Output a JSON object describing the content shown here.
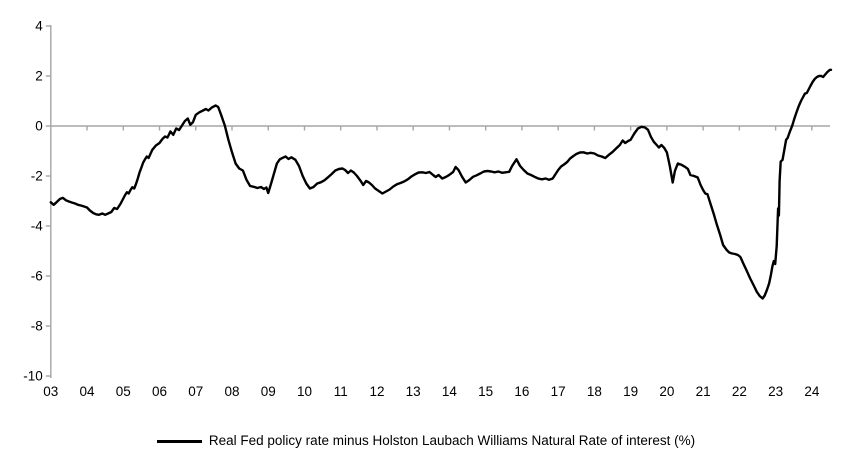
{
  "legend": {
    "label": "Real Fed policy rate minus Holston Laubach Williams Natural Rate of interest (%)"
  },
  "chart_data": {
    "type": "line",
    "title": "",
    "xlabel": "",
    "ylabel": "",
    "grid": false,
    "zero_line": true,
    "legend_position": "bottom",
    "axis_color": "#a6a6a6",
    "text_color": "#000000",
    "xlim": [
      2003,
      2024.6
    ],
    "ylim": [
      -10,
      4
    ],
    "y_ticks": [
      4,
      2,
      0,
      -2,
      -4,
      -6,
      -8,
      -10
    ],
    "y_tick_labels": [
      "4",
      "2",
      "0",
      "-2",
      "-4",
      "-6",
      "-8",
      "-10"
    ],
    "x_tick_years": [
      2003,
      2004,
      2005,
      2006,
      2007,
      2008,
      2009,
      2010,
      2011,
      2012,
      2013,
      2014,
      2015,
      2016,
      2017,
      2018,
      2019,
      2020,
      2021,
      2022,
      2023,
      2024
    ],
    "x_tick_labels": [
      "03",
      "04",
      "05",
      "06",
      "07",
      "08",
      "09",
      "10",
      "11",
      "12",
      "13",
      "14",
      "15",
      "16",
      "17",
      "18",
      "19",
      "20",
      "21",
      "22",
      "23",
      "24"
    ],
    "series": [
      {
        "name": "Real Fed policy rate minus Holston Laubach Williams Natural Rate of interest (%)",
        "color": "#000000",
        "points": [
          [
            2003.0,
            -3.05
          ],
          [
            2003.08,
            -3.15
          ],
          [
            2003.17,
            -3.03
          ],
          [
            2003.25,
            -2.92
          ],
          [
            2003.33,
            -2.87
          ],
          [
            2003.42,
            -2.97
          ],
          [
            2003.5,
            -3.02
          ],
          [
            2003.58,
            -3.06
          ],
          [
            2003.67,
            -3.1
          ],
          [
            2003.75,
            -3.15
          ],
          [
            2003.83,
            -3.18
          ],
          [
            2003.92,
            -3.22
          ],
          [
            2004.0,
            -3.26
          ],
          [
            2004.08,
            -3.38
          ],
          [
            2004.17,
            -3.48
          ],
          [
            2004.25,
            -3.53
          ],
          [
            2004.33,
            -3.55
          ],
          [
            2004.42,
            -3.5
          ],
          [
            2004.5,
            -3.55
          ],
          [
            2004.58,
            -3.5
          ],
          [
            2004.67,
            -3.44
          ],
          [
            2004.75,
            -3.28
          ],
          [
            2004.83,
            -3.32
          ],
          [
            2004.92,
            -3.12
          ],
          [
            2005.0,
            -2.9
          ],
          [
            2005.05,
            -2.76
          ],
          [
            2005.1,
            -2.65
          ],
          [
            2005.15,
            -2.7
          ],
          [
            2005.2,
            -2.56
          ],
          [
            2005.25,
            -2.45
          ],
          [
            2005.3,
            -2.5
          ],
          [
            2005.35,
            -2.32
          ],
          [
            2005.4,
            -2.1
          ],
          [
            2005.45,
            -1.85
          ],
          [
            2005.5,
            -1.66
          ],
          [
            2005.55,
            -1.46
          ],
          [
            2005.6,
            -1.33
          ],
          [
            2005.65,
            -1.22
          ],
          [
            2005.7,
            -1.28
          ],
          [
            2005.8,
            -0.95
          ],
          [
            2005.9,
            -0.78
          ],
          [
            2006.0,
            -0.68
          ],
          [
            2006.08,
            -0.52
          ],
          [
            2006.15,
            -0.42
          ],
          [
            2006.22,
            -0.46
          ],
          [
            2006.3,
            -0.22
          ],
          [
            2006.38,
            -0.35
          ],
          [
            2006.46,
            -0.1
          ],
          [
            2006.54,
            -0.16
          ],
          [
            2006.62,
            0.02
          ],
          [
            2006.7,
            0.2
          ],
          [
            2006.78,
            0.3
          ],
          [
            2006.85,
            0.05
          ],
          [
            2006.92,
            0.15
          ],
          [
            2007.0,
            0.45
          ],
          [
            2007.1,
            0.55
          ],
          [
            2007.2,
            0.62
          ],
          [
            2007.28,
            0.68
          ],
          [
            2007.35,
            0.62
          ],
          [
            2007.45,
            0.75
          ],
          [
            2007.55,
            0.82
          ],
          [
            2007.62,
            0.76
          ],
          [
            2007.7,
            0.45
          ],
          [
            2007.8,
            0.02
          ],
          [
            2007.9,
            -0.55
          ],
          [
            2008.0,
            -1.05
          ],
          [
            2008.1,
            -1.5
          ],
          [
            2008.2,
            -1.7
          ],
          [
            2008.3,
            -1.78
          ],
          [
            2008.4,
            -2.15
          ],
          [
            2008.5,
            -2.4
          ],
          [
            2008.6,
            -2.43
          ],
          [
            2008.7,
            -2.48
          ],
          [
            2008.8,
            -2.44
          ],
          [
            2008.88,
            -2.52
          ],
          [
            2008.95,
            -2.46
          ],
          [
            2009.0,
            -2.68
          ],
          [
            2009.08,
            -2.3
          ],
          [
            2009.16,
            -1.9
          ],
          [
            2009.24,
            -1.5
          ],
          [
            2009.32,
            -1.33
          ],
          [
            2009.4,
            -1.27
          ],
          [
            2009.48,
            -1.22
          ],
          [
            2009.56,
            -1.32
          ],
          [
            2009.64,
            -1.25
          ],
          [
            2009.75,
            -1.35
          ],
          [
            2009.85,
            -1.6
          ],
          [
            2009.95,
            -2.0
          ],
          [
            2010.05,
            -2.3
          ],
          [
            2010.15,
            -2.5
          ],
          [
            2010.25,
            -2.44
          ],
          [
            2010.35,
            -2.3
          ],
          [
            2010.45,
            -2.25
          ],
          [
            2010.55,
            -2.17
          ],
          [
            2010.65,
            -2.05
          ],
          [
            2010.75,
            -1.92
          ],
          [
            2010.85,
            -1.78
          ],
          [
            2010.95,
            -1.72
          ],
          [
            2011.05,
            -1.7
          ],
          [
            2011.12,
            -1.76
          ],
          [
            2011.2,
            -1.88
          ],
          [
            2011.28,
            -1.78
          ],
          [
            2011.36,
            -1.86
          ],
          [
            2011.45,
            -2.0
          ],
          [
            2011.55,
            -2.2
          ],
          [
            2011.62,
            -2.36
          ],
          [
            2011.7,
            -2.2
          ],
          [
            2011.78,
            -2.26
          ],
          [
            2011.86,
            -2.36
          ],
          [
            2011.95,
            -2.5
          ],
          [
            2012.05,
            -2.6
          ],
          [
            2012.15,
            -2.7
          ],
          [
            2012.25,
            -2.62
          ],
          [
            2012.35,
            -2.54
          ],
          [
            2012.45,
            -2.42
          ],
          [
            2012.55,
            -2.33
          ],
          [
            2012.65,
            -2.28
          ],
          [
            2012.75,
            -2.22
          ],
          [
            2012.85,
            -2.13
          ],
          [
            2012.95,
            -2.02
          ],
          [
            2013.05,
            -1.93
          ],
          [
            2013.15,
            -1.86
          ],
          [
            2013.25,
            -1.85
          ],
          [
            2013.35,
            -1.88
          ],
          [
            2013.45,
            -1.84
          ],
          [
            2013.55,
            -1.96
          ],
          [
            2013.62,
            -2.04
          ],
          [
            2013.7,
            -1.96
          ],
          [
            2013.8,
            -2.1
          ],
          [
            2013.9,
            -2.04
          ],
          [
            2014.0,
            -1.95
          ],
          [
            2014.1,
            -1.84
          ],
          [
            2014.17,
            -1.64
          ],
          [
            2014.25,
            -1.76
          ],
          [
            2014.35,
            -2.03
          ],
          [
            2014.45,
            -2.26
          ],
          [
            2014.55,
            -2.16
          ],
          [
            2014.65,
            -2.03
          ],
          [
            2014.75,
            -1.97
          ],
          [
            2014.85,
            -1.9
          ],
          [
            2014.95,
            -1.82
          ],
          [
            2015.05,
            -1.8
          ],
          [
            2015.15,
            -1.82
          ],
          [
            2015.25,
            -1.85
          ],
          [
            2015.35,
            -1.82
          ],
          [
            2015.45,
            -1.87
          ],
          [
            2015.55,
            -1.85
          ],
          [
            2015.65,
            -1.83
          ],
          [
            2015.73,
            -1.6
          ],
          [
            2015.85,
            -1.33
          ],
          [
            2015.95,
            -1.6
          ],
          [
            2016.05,
            -1.76
          ],
          [
            2016.15,
            -1.9
          ],
          [
            2016.25,
            -1.96
          ],
          [
            2016.35,
            -2.03
          ],
          [
            2016.45,
            -2.1
          ],
          [
            2016.55,
            -2.13
          ],
          [
            2016.65,
            -2.1
          ],
          [
            2016.75,
            -2.15
          ],
          [
            2016.85,
            -2.1
          ],
          [
            2016.93,
            -1.92
          ],
          [
            2017.0,
            -1.76
          ],
          [
            2017.08,
            -1.62
          ],
          [
            2017.16,
            -1.54
          ],
          [
            2017.25,
            -1.44
          ],
          [
            2017.33,
            -1.3
          ],
          [
            2017.42,
            -1.2
          ],
          [
            2017.5,
            -1.12
          ],
          [
            2017.6,
            -1.06
          ],
          [
            2017.7,
            -1.05
          ],
          [
            2017.8,
            -1.1
          ],
          [
            2017.9,
            -1.07
          ],
          [
            2018.0,
            -1.1
          ],
          [
            2018.1,
            -1.18
          ],
          [
            2018.2,
            -1.22
          ],
          [
            2018.3,
            -1.28
          ],
          [
            2018.4,
            -1.15
          ],
          [
            2018.5,
            -1.04
          ],
          [
            2018.6,
            -0.9
          ],
          [
            2018.7,
            -0.76
          ],
          [
            2018.78,
            -0.58
          ],
          [
            2018.85,
            -0.68
          ],
          [
            2018.93,
            -0.6
          ],
          [
            2019.0,
            -0.55
          ],
          [
            2019.1,
            -0.3
          ],
          [
            2019.2,
            -0.1
          ],
          [
            2019.3,
            -0.03
          ],
          [
            2019.4,
            -0.06
          ],
          [
            2019.48,
            -0.15
          ],
          [
            2019.56,
            -0.43
          ],
          [
            2019.64,
            -0.63
          ],
          [
            2019.72,
            -0.76
          ],
          [
            2019.78,
            -0.86
          ],
          [
            2019.85,
            -0.76
          ],
          [
            2019.93,
            -0.88
          ],
          [
            2020.0,
            -1.06
          ],
          [
            2020.08,
            -1.6
          ],
          [
            2020.16,
            -2.26
          ],
          [
            2020.22,
            -1.8
          ],
          [
            2020.3,
            -1.5
          ],
          [
            2020.4,
            -1.55
          ],
          [
            2020.5,
            -1.63
          ],
          [
            2020.58,
            -1.72
          ],
          [
            2020.65,
            -1.96
          ],
          [
            2020.75,
            -2.0
          ],
          [
            2020.85,
            -2.06
          ],
          [
            2020.93,
            -2.36
          ],
          [
            2021.0,
            -2.56
          ],
          [
            2021.06,
            -2.7
          ],
          [
            2021.12,
            -2.73
          ],
          [
            2021.2,
            -3.1
          ],
          [
            2021.29,
            -3.5
          ],
          [
            2021.38,
            -3.95
          ],
          [
            2021.47,
            -4.36
          ],
          [
            2021.55,
            -4.76
          ],
          [
            2021.65,
            -4.96
          ],
          [
            2021.72,
            -5.06
          ],
          [
            2021.8,
            -5.1
          ],
          [
            2021.88,
            -5.12
          ],
          [
            2021.96,
            -5.16
          ],
          [
            2022.03,
            -5.24
          ],
          [
            2022.11,
            -5.5
          ],
          [
            2022.2,
            -5.78
          ],
          [
            2022.3,
            -6.1
          ],
          [
            2022.39,
            -6.36
          ],
          [
            2022.48,
            -6.63
          ],
          [
            2022.56,
            -6.8
          ],
          [
            2022.64,
            -6.9
          ],
          [
            2022.7,
            -6.78
          ],
          [
            2022.76,
            -6.56
          ],
          [
            2022.82,
            -6.3
          ],
          [
            2022.87,
            -5.96
          ],
          [
            2022.91,
            -5.63
          ],
          [
            2022.95,
            -5.4
          ],
          [
            2022.99,
            -5.52
          ],
          [
            2023.03,
            -4.8
          ],
          [
            2023.07,
            -3.3
          ],
          [
            2023.09,
            -3.58
          ],
          [
            2023.11,
            -2.2
          ],
          [
            2023.14,
            -1.42
          ],
          [
            2023.19,
            -1.36
          ],
          [
            2023.24,
            -0.96
          ],
          [
            2023.29,
            -0.55
          ],
          [
            2023.33,
            -0.48
          ],
          [
            2023.4,
            -0.2
          ],
          [
            2023.46,
            0.02
          ],
          [
            2023.52,
            0.3
          ],
          [
            2023.58,
            0.56
          ],
          [
            2023.64,
            0.8
          ],
          [
            2023.7,
            1.0
          ],
          [
            2023.76,
            1.16
          ],
          [
            2023.81,
            1.3
          ],
          [
            2023.86,
            1.32
          ],
          [
            2023.91,
            1.46
          ],
          [
            2023.96,
            1.6
          ],
          [
            2024.02,
            1.76
          ],
          [
            2024.08,
            1.88
          ],
          [
            2024.14,
            1.96
          ],
          [
            2024.2,
            2.0
          ],
          [
            2024.26,
            2.0
          ],
          [
            2024.31,
            1.96
          ],
          [
            2024.37,
            2.06
          ],
          [
            2024.43,
            2.16
          ],
          [
            2024.49,
            2.24
          ],
          [
            2024.53,
            2.25
          ]
        ]
      }
    ]
  }
}
